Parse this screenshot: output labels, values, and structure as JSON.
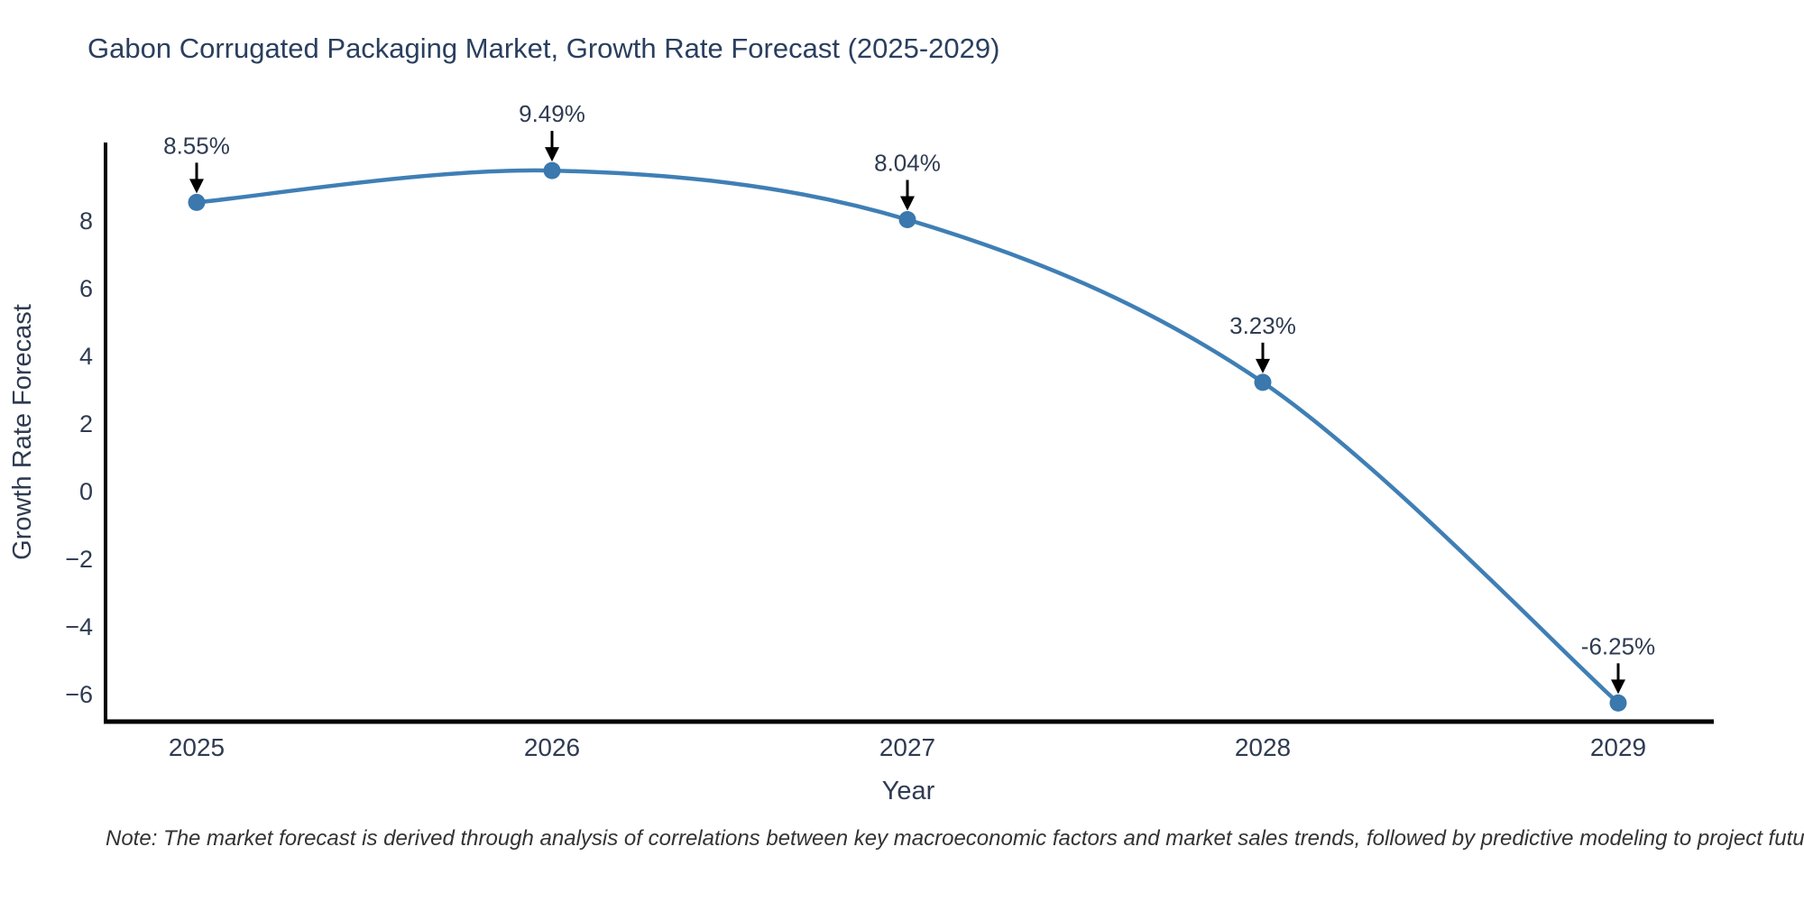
{
  "title": "Gabon Corrugated Packaging Market, Growth Rate Forecast (2025-2029)",
  "note": "Note: The market forecast is derived through analysis of correlations between key macroeconomic factors and market sales trends, followed by predictive modeling to project future sales",
  "chart_data": {
    "type": "line",
    "title": "Gabon Corrugated Packaging Market, Growth Rate Forecast (2025-2029)",
    "xlabel": "Year",
    "ylabel": "Growth Rate Forecast",
    "categories": [
      "2025",
      "2026",
      "2027",
      "2028",
      "2029"
    ],
    "series": [
      {
        "name": "Growth Rate Forecast",
        "values": [
          8.55,
          9.49,
          8.04,
          3.23,
          -6.25
        ]
      }
    ],
    "point_labels": [
      "8.55%",
      "9.49%",
      "8.04%",
      "3.23%",
      "-6.25%"
    ],
    "ytick_values": [
      8,
      6,
      4,
      2,
      0,
      -2,
      -4,
      -6
    ],
    "ytick_labels": [
      "8",
      "6",
      "4",
      "2",
      "0",
      "−2",
      "−4",
      "−6"
    ],
    "ylim": [
      -7.2,
      10.2
    ],
    "grid": false,
    "legend_position": "none",
    "curve": "spline",
    "line_color": "#3f7fb5",
    "marker_color": "#3a78ad",
    "axis_color": "#000000",
    "annotation_arrow_color": "#000000"
  },
  "colors": {
    "title_text": "#2a3f5f",
    "tick_text": "#2f3b52",
    "note_text": "#333333",
    "background": "#ffffff"
  }
}
